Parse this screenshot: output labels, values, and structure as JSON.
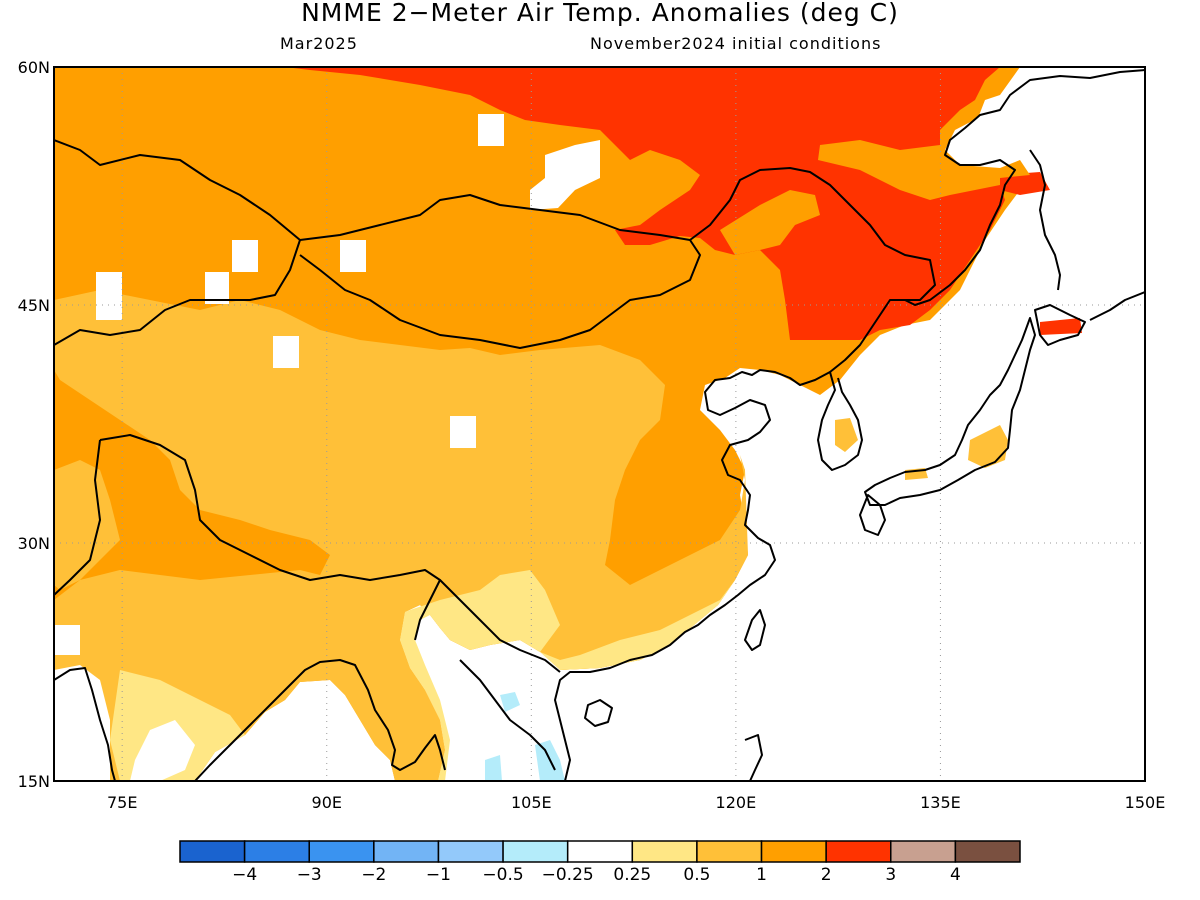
{
  "header": {
    "title": "NMME 2−Meter Air Temp. Anomalies (deg C)",
    "valid_month": "Mar2025",
    "initial_conditions": "November2024 initial conditions"
  },
  "map": {
    "region": "East and Central Asia",
    "lon_range": [
      70,
      150
    ],
    "lat_range": [
      15,
      60
    ],
    "lon_tick_labels": [
      "75E",
      "90E",
      "105E",
      "120E",
      "135E",
      "150E"
    ],
    "lat_tick_labels": [
      "15N",
      "30N",
      "45N",
      "60N"
    ],
    "land_only": true,
    "ocean_color": "#ffffff",
    "coastline_color": "#000000",
    "gridlines": "dotted"
  },
  "colorbar": {
    "colors": [
      "#1a63cf",
      "#2c7fe6",
      "#3a93f0",
      "#72b4f5",
      "#93c9fa",
      "#b4ecfa",
      "#ffffff",
      "#ffe785",
      "#ffc038",
      "#ff9f00",
      "#ff3300",
      "#c8a090",
      "#7a5040"
    ],
    "labels": [
      "−4",
      "−3",
      "−2",
      "−1",
      "−0.5",
      "−0.25",
      "0.25",
      "0.5",
      "1",
      "2",
      "3",
      "4"
    ]
  }
}
